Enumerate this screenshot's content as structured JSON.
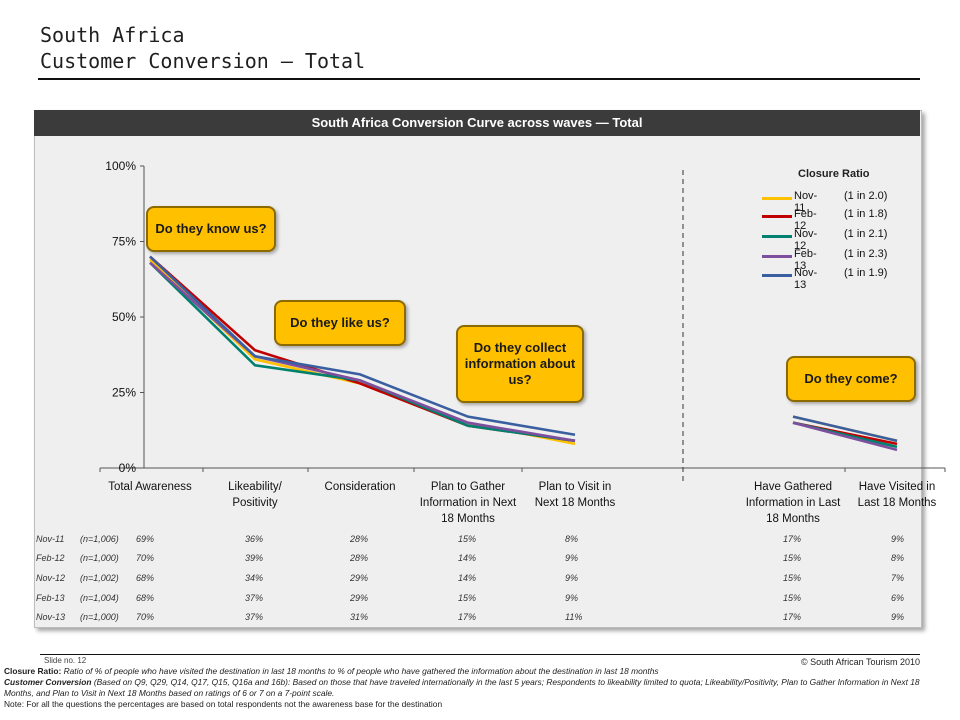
{
  "page": {
    "title_line1": "South Africa",
    "title_line2": "Customer Conversion — Total"
  },
  "panel": {
    "header": "South Africa Conversion Curve across waves — Total"
  },
  "callouts": {
    "know": "Do they know us?",
    "like": "Do they like us?",
    "collect": "Do they collect information about us?",
    "come": "Do they come?"
  },
  "legend": {
    "title": "Closure Ratio",
    "items": [
      {
        "name": "Nov-11",
        "ratio": "(1 in 2.0)"
      },
      {
        "name": "Feb-12",
        "ratio": "(1 in 1.8)"
      },
      {
        "name": "Nov-12",
        "ratio": "(1 in 2.1)"
      },
      {
        "name": "Feb-13",
        "ratio": "(1 in 2.3)"
      },
      {
        "name": "Nov-13",
        "ratio": "(1 in 1.9)"
      }
    ]
  },
  "chart_data": {
    "type": "line",
    "title": "South Africa Conversion Curve across waves — Total",
    "categories": [
      "Total Awareness",
      "Likeability/ Positivity",
      "Consideration",
      "Plan to Gather Information in Next 18 Months",
      "Plan to Visit in Next 18 Months",
      "Have Gathered Information in Last 18 Months",
      "Have Visited in Last 18 Months"
    ],
    "category_lines": [
      [
        "Total Awareness"
      ],
      [
        "Likeability/",
        "Positivity"
      ],
      [
        "Consideration"
      ],
      [
        "Plan to Gather",
        "Information in Next",
        "18 Months"
      ],
      [
        "Plan to Visit in",
        "Next 18 Months"
      ],
      [
        "Have Gathered",
        "Information in Last",
        "18 Months"
      ],
      [
        "Have Visited in",
        "Last 18 Months"
      ]
    ],
    "y_ticks": [
      "0%",
      "25%",
      "50%",
      "75%",
      "100%"
    ],
    "ylim": [
      0,
      100
    ],
    "series": [
      {
        "name": "Nov-11",
        "color": "#ffc000",
        "n": "(n=1,006)",
        "values": [
          69,
          36,
          28,
          15,
          8,
          17,
          9
        ]
      },
      {
        "name": "Feb-12",
        "color": "#c00000",
        "n": "(n=1,000)",
        "values": [
          70,
          39,
          28,
          14,
          9,
          15,
          8
        ]
      },
      {
        "name": "Nov-12",
        "color": "#00806e",
        "n": "(n=1,002)",
        "values": [
          68,
          34,
          29,
          14,
          9,
          15,
          7
        ]
      },
      {
        "name": "Feb-13",
        "color": "#7f4f9f",
        "n": "(n=1,004)",
        "values": [
          68,
          37,
          29,
          15,
          9,
          15,
          6
        ]
      },
      {
        "name": "Nov-13",
        "color": "#3a5fa0",
        "n": "(n=1,000)",
        "values": [
          70,
          37,
          31,
          17,
          11,
          17,
          9
        ]
      }
    ]
  },
  "footer": {
    "slide_no": "Slide no. 12",
    "copyright": "© South African Tourism 2010",
    "closure_label": "Closure Ratio:",
    "closure_text": " Ratio of % of people who have visited the destination in last 18 months to % of people who have gathered the information about the destination in last 18 months",
    "conversion_label": "Customer Conversion",
    "conversion_text": " (Based on Q9, Q29, Q14, Q17, Q15, Q16a and 16b): Based on those that have traveled internationally in the last 5 years; Respondents to likeability limited to quota; Likeability/Positivity, Plan to Gather Information in Next 18 Months, and Plan to Visit in Next 18 Months based on ratings of 6 or 7 on a 7-point scale.",
    "note": "Note: For all the questions the percentages are based on total respondents not the awareness base for the destination"
  }
}
